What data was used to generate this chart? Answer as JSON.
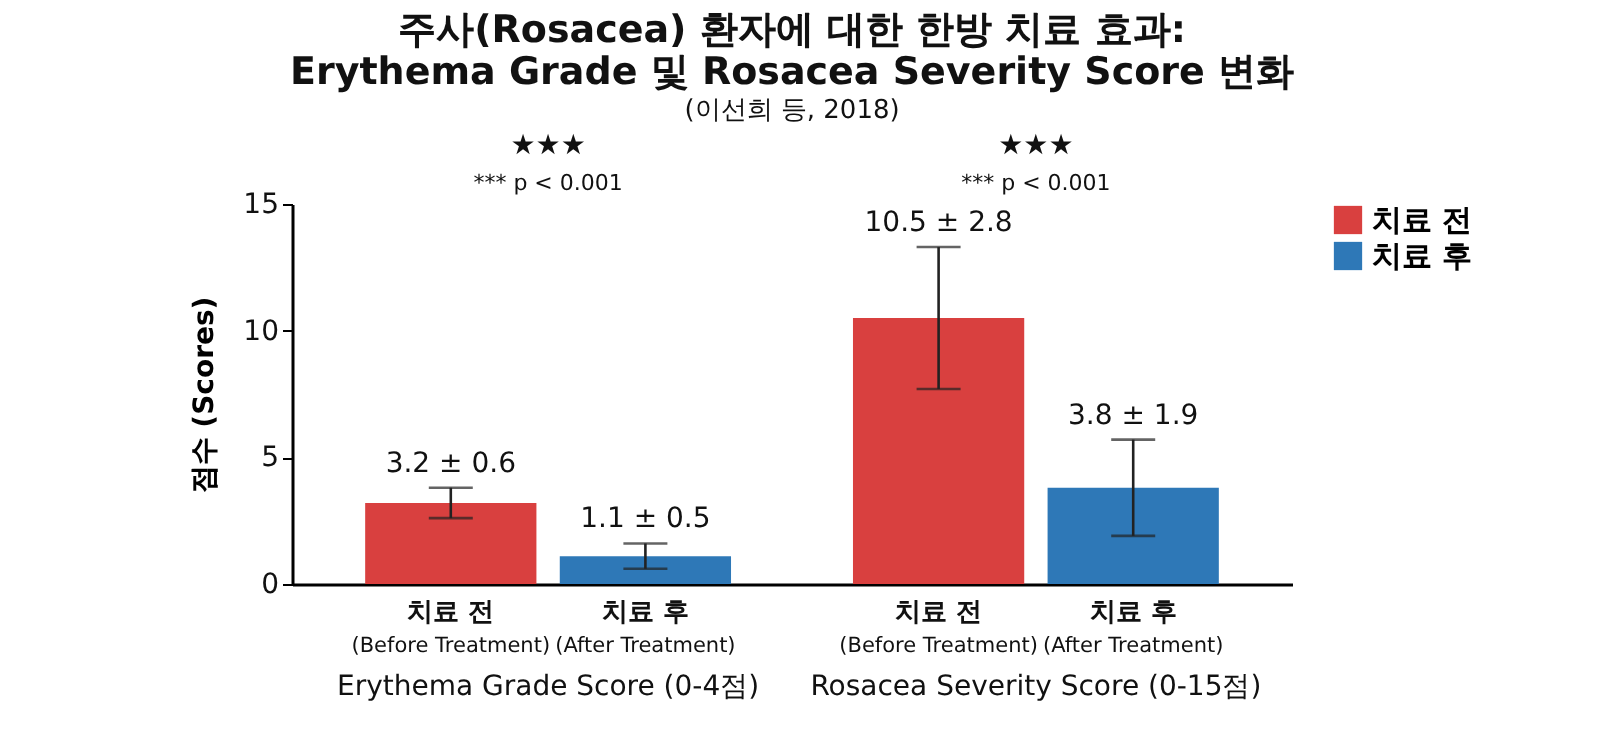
{
  "chart_data": {
    "type": "bar",
    "title": [
      "주사(Rosacea) 환자에 대한 한방 치료 효과:",
      "Erythema Grade 및 Rosacea Severity Score 변화"
    ],
    "subtitle": "(이선희 등, 2018)",
    "ylabel": "점수 (Scores)",
    "categories": [
      "Erythema Grade Score (0-4점)",
      "Rosacea Severity Score (0-15점)"
    ],
    "series": [
      {
        "name": "치료 전",
        "color": "#d9403f",
        "values": [
          3.2,
          10.5
        ],
        "errors": [
          0.6,
          2.8
        ],
        "value_labels": [
          "3.2 ± 0.6",
          "10.5 ± 2.8"
        ]
      },
      {
        "name": "치료 후",
        "color": "#2e78b7",
        "values": [
          1.1,
          3.8
        ],
        "errors": [
          0.5,
          1.9
        ],
        "value_labels": [
          "1.1 ± 0.5",
          "3.8 ± 1.9"
        ]
      }
    ],
    "annotations": [
      "★★★",
      "*** p < 0.001",
      "★★★",
      "*** p < 0.001",
      "(Before Treatment)",
      "(After Treatment)"
    ],
    "ylim": [
      0,
      15
    ],
    "yticks": [
      0,
      5,
      10,
      15
    ],
    "grid": false,
    "legend": "top right"
  }
}
